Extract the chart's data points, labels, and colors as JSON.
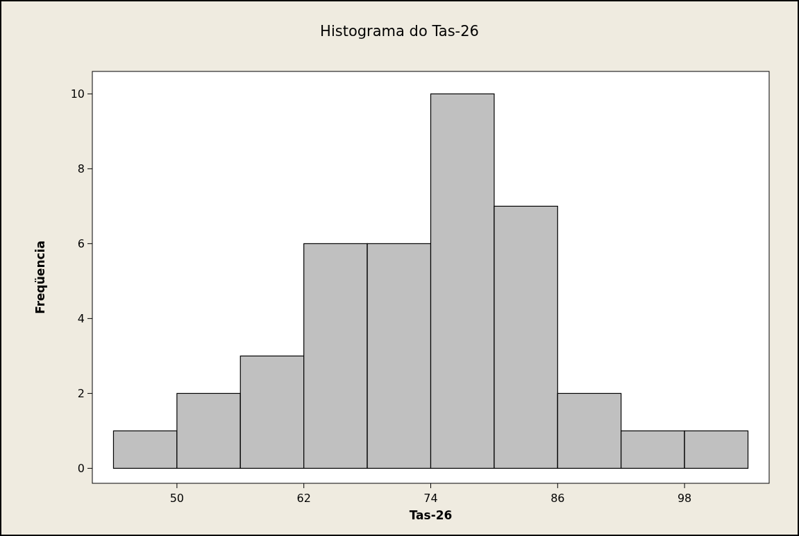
{
  "chart_data": {
    "type": "histogram",
    "title": "Histograma do Tas-26",
    "xlabel": "Tas-26",
    "ylabel": "Freqüencia",
    "bins": [
      44,
      50,
      56,
      62,
      68,
      74,
      80,
      86,
      92,
      98,
      104
    ],
    "values": [
      1,
      2,
      3,
      6,
      6,
      10,
      7,
      2,
      1,
      1
    ],
    "color": "#c0c0c0",
    "xlim": [
      42,
      106
    ],
    "xticks": [
      50,
      62,
      74,
      86,
      98
    ],
    "ylim": [
      -0.4,
      10.6
    ],
    "yticks": [
      0,
      2,
      4,
      6,
      8,
      10
    ],
    "grid": false
  }
}
